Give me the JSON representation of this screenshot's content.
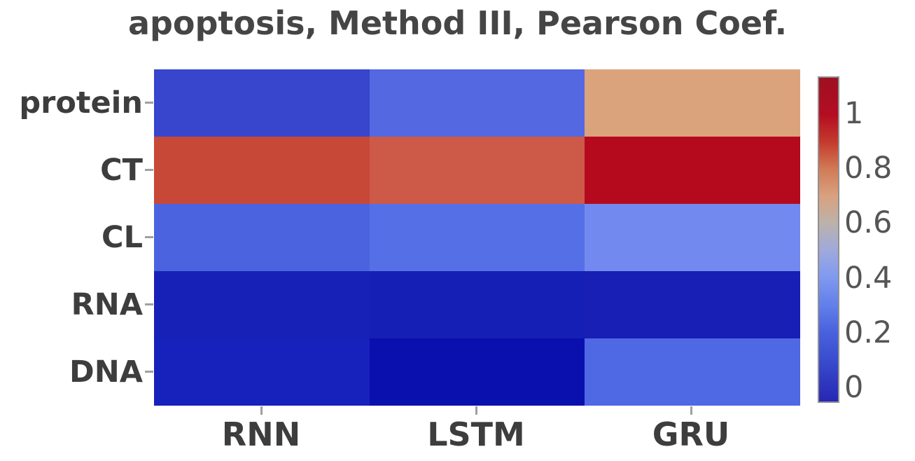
{
  "title": "apoptosis, Method III, Pearson Coef.",
  "colors": {
    "background": "#ffffff",
    "title_text": "#454545",
    "axis_label_text": "#3d3d3d",
    "colorbar_tick_text": "#555555",
    "tick_mark": "#a0a0a0",
    "colorbar_border": "#909090"
  },
  "chart_data": {
    "type": "heatmap",
    "title": "apoptosis, Method III, Pearson Coef.",
    "value_name": "Pearson Coef.",
    "rows": [
      "protein",
      "CT",
      "CL",
      "RNA",
      "DNA"
    ],
    "columns": [
      "RNN",
      "LSTM",
      "GRU"
    ],
    "values": [
      [
        0.15,
        0.3,
        0.75
      ],
      [
        0.9,
        0.88,
        1.0
      ],
      [
        0.27,
        0.31,
        0.38
      ],
      [
        0.05,
        0.05,
        0.06
      ],
      [
        0.06,
        0.0,
        0.28
      ]
    ],
    "cell_colors": [
      [
        "#3746cd",
        "#5468e2",
        "#dba37c"
      ],
      [
        "#c74837",
        "#cd5948",
        "#b50a1e"
      ],
      [
        "#4c63df",
        "#5570e6",
        "#7289f0"
      ],
      [
        "#1721b8",
        "#151fb5",
        "#171fb4"
      ],
      [
        "#1721bb",
        "#0a10ad",
        "#4f68e4"
      ]
    ],
    "grid": false,
    "colorbar": {
      "position": "right",
      "colormap": "coolwarm-like (dark blue → periwinkle → gray → tan → dark red)",
      "ticks": [
        {
          "label": "1",
          "value": 1.0
        },
        {
          "label": "0.8",
          "value": 0.8
        },
        {
          "label": "0.6",
          "value": 0.6
        },
        {
          "label": "0.4",
          "value": 0.4
        },
        {
          "label": "0.2",
          "value": 0.2
        },
        {
          "label": "0",
          "value": 0.0
        }
      ],
      "gradient_top_to_bottom": [
        {
          "pos": 0,
          "color": "#9e1021"
        },
        {
          "pos": 11.4,
          "color": "#b40d22"
        },
        {
          "pos": 19.8,
          "color": "#c43a2d"
        },
        {
          "pos": 28.2,
          "color": "#d07b55"
        },
        {
          "pos": 36.6,
          "color": "#d9a180"
        },
        {
          "pos": 45,
          "color": "#bcb2ab"
        },
        {
          "pos": 53.3,
          "color": "#9fa9dc"
        },
        {
          "pos": 61.6,
          "color": "#8099f0"
        },
        {
          "pos": 70,
          "color": "#6380ea"
        },
        {
          "pos": 78.3,
          "color": "#4a62dd"
        },
        {
          "pos": 86.7,
          "color": "#3a4ecf"
        },
        {
          "pos": 95,
          "color": "#2d35bd"
        },
        {
          "pos": 100,
          "color": "#2727b4"
        }
      ]
    }
  }
}
